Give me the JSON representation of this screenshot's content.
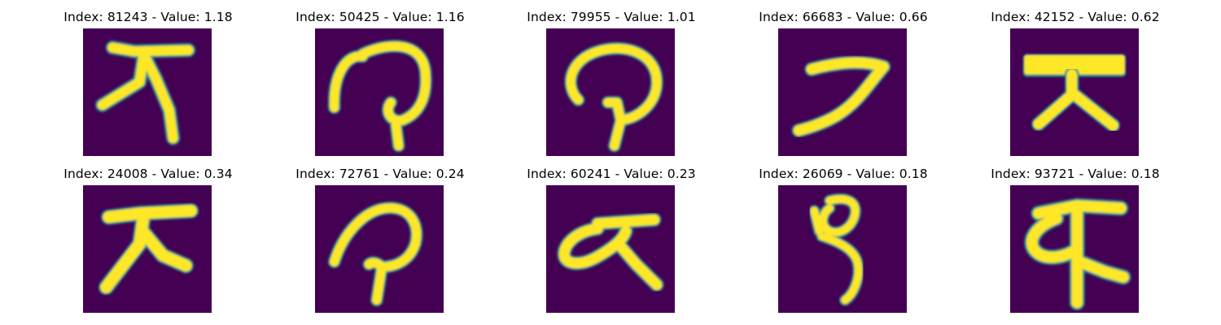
{
  "figure": {
    "background_color": "#ffffff",
    "panels": [
      {
        "title": "Index: 81243 - Value: 1.18",
        "image_color": "#fde725",
        "background_color": "#440154"
      },
      {
        "title": "Index: 50425 - Value: 1.16",
        "image_color": "#fde725",
        "background_color": "#440154"
      },
      {
        "title": "Index: 79955 - Value: 1.01",
        "image_color": "#fde725",
        "background_color": "#440154"
      },
      {
        "title": "Index: 66683 - Value: 0.66",
        "image_color": "#fde725",
        "background_color": "#440154"
      },
      {
        "title": "Index: 42152 - Value: 0.62",
        "image_color": "#fde725",
        "background_color": "#440154"
      },
      {
        "title": "Index: 24008 - Value: 0.34",
        "image_color": "#fde725",
        "background_color": "#440154"
      },
      {
        "title": "Index: 72761 - Value: 0.24",
        "image_color": "#fde725",
        "background_color": "#440154"
      },
      {
        "title": "Index: 60241 - Value: 0.23",
        "image_color": "#fde725",
        "background_color": "#440154"
      },
      {
        "title": "Index: 26069 - Value: 0.18",
        "image_color": "#fde725",
        "background_color": "#440154"
      },
      {
        "title": "Index: 93721 - Value: 0.18",
        "image_color": "#fde725",
        "background_color": "#440154"
      }
    ]
  }
}
